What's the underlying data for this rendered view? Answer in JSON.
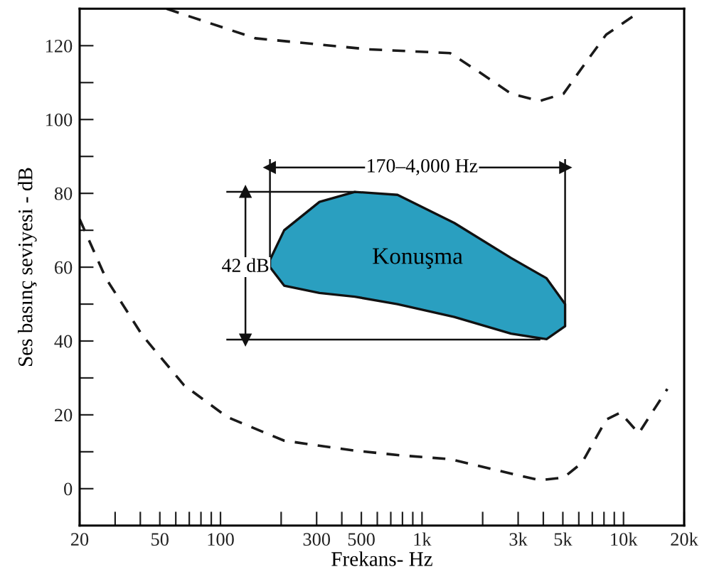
{
  "chart_data": {
    "type": "line",
    "xlabel": "Frekans- Hz",
    "ylabel": "Ses basınç seviyesi - dB",
    "log": "x",
    "xlim": [
      20,
      20000
    ],
    "ylim": [
      -10,
      130
    ],
    "xticks": [
      20,
      {
        "value": 30,
        "label": null
      },
      {
        "value": 40,
        "label": null
      },
      50,
      {
        "value": 60,
        "label": null
      },
      {
        "value": 70,
        "label": null
      },
      {
        "value": 80,
        "label": null
      },
      {
        "value": 90,
        "label": null
      },
      100,
      {
        "value": 200,
        "label": null
      },
      300,
      {
        "value": 400,
        "label": null
      },
      500,
      {
        "value": 600,
        "label": null
      },
      {
        "value": 700,
        "label": null
      },
      {
        "value": 800,
        "label": null
      },
      {
        "value": 900,
        "label": null
      },
      {
        "value": 1000,
        "label": "1k"
      },
      {
        "value": 2000,
        "label": null
      },
      {
        "value": 3000,
        "label": "3k"
      },
      {
        "value": 4000,
        "label": null
      },
      {
        "value": 5000,
        "label": "5k"
      },
      {
        "value": 6000,
        "label": null
      },
      {
        "value": 7000,
        "label": null
      },
      {
        "value": 8000,
        "label": null
      },
      {
        "value": 9000,
        "label": null
      },
      {
        "value": 10000,
        "label": "10k"
      },
      {
        "value": 20000,
        "label": "20k"
      }
    ],
    "yticks": [
      0,
      {
        "value": 10,
        "label": null
      },
      20,
      {
        "value": 30,
        "label": null
      },
      40,
      {
        "value": 50,
        "label": null
      },
      60,
      {
        "value": 70,
        "label": null
      },
      80,
      {
        "value": 90,
        "label": null
      },
      100,
      {
        "value": 110,
        "label": null
      },
      120
    ],
    "grid": false,
    "legend": false,
    "series": [
      {
        "line_style": "dashed",
        "color": "#1a1a1a",
        "x": [
          54,
          149,
          547,
          1377,
          1905,
          2767,
          3828,
          5040,
          6220,
          8200,
          11900
        ],
        "values": [
          130,
          122,
          119,
          118,
          113,
          107,
          105,
          107,
          114,
          123,
          129
        ]
      },
      {
        "line_style": "dashed",
        "color": "#1a1a1a",
        "x": [
          20,
          27,
          41,
          66,
          108,
          207,
          464,
          794,
          1377,
          2350,
          3828,
          5040,
          6220,
          8200,
          9640,
          11900,
          14000,
          16500
        ],
        "values": [
          73,
          57,
          41.5,
          28,
          19.4,
          13,
          10.3,
          9,
          8,
          5,
          2.3,
          3,
          7,
          18.7,
          20.6,
          15,
          21,
          27
        ]
      },
      {
        "type": "area",
        "color": "#2a9fc0",
        "x": [
          176,
          207,
          310,
          464,
          756,
          1445,
          2767,
          4150,
          5130,
          5130,
          4150,
          2767,
          1445,
          756,
          464,
          310,
          207,
          176
        ],
        "values": [
          62,
          70,
          77.7,
          80.4,
          79.6,
          72,
          62.5,
          57,
          50,
          44,
          40.5,
          42,
          46.5,
          50,
          52,
          53,
          55,
          60
        ]
      },
      {
        "line_style": "solid",
        "color": "#111111",
        "x": [
          108,
          464
        ],
        "values": [
          80.4,
          80.4
        ]
      },
      {
        "line_style": "solid",
        "color": "#111111",
        "x": [
          108,
          3828
        ],
        "values": [
          40.4,
          40.4
        ]
      },
      {
        "line_style": "solid",
        "color": "#111111",
        "x": [
          176,
          176
        ],
        "values": [
          62,
          89
        ]
      },
      {
        "line_style": "solid",
        "color": "#111111",
        "x": [
          5130,
          5130
        ],
        "values": [
          50,
          89
        ]
      },
      {
        "line_style": "solid",
        "marker": "triangle",
        "color": "#111111",
        "x": [
          176,
          5130
        ],
        "values": [
          87,
          87
        ]
      },
      {
        "line_style": "solid",
        "marker": "triangle",
        "color": "#111111",
        "x": [
          133,
          133
        ],
        "values": [
          40.4,
          80.4
        ]
      }
    ],
    "annotations": [
      {
        "text": "170–4,000 Hz",
        "x": 1000,
        "y": 87
      },
      {
        "text": "42 dB",
        "x": 133,
        "y": 60
      },
      "Konuşma"
    ]
  }
}
